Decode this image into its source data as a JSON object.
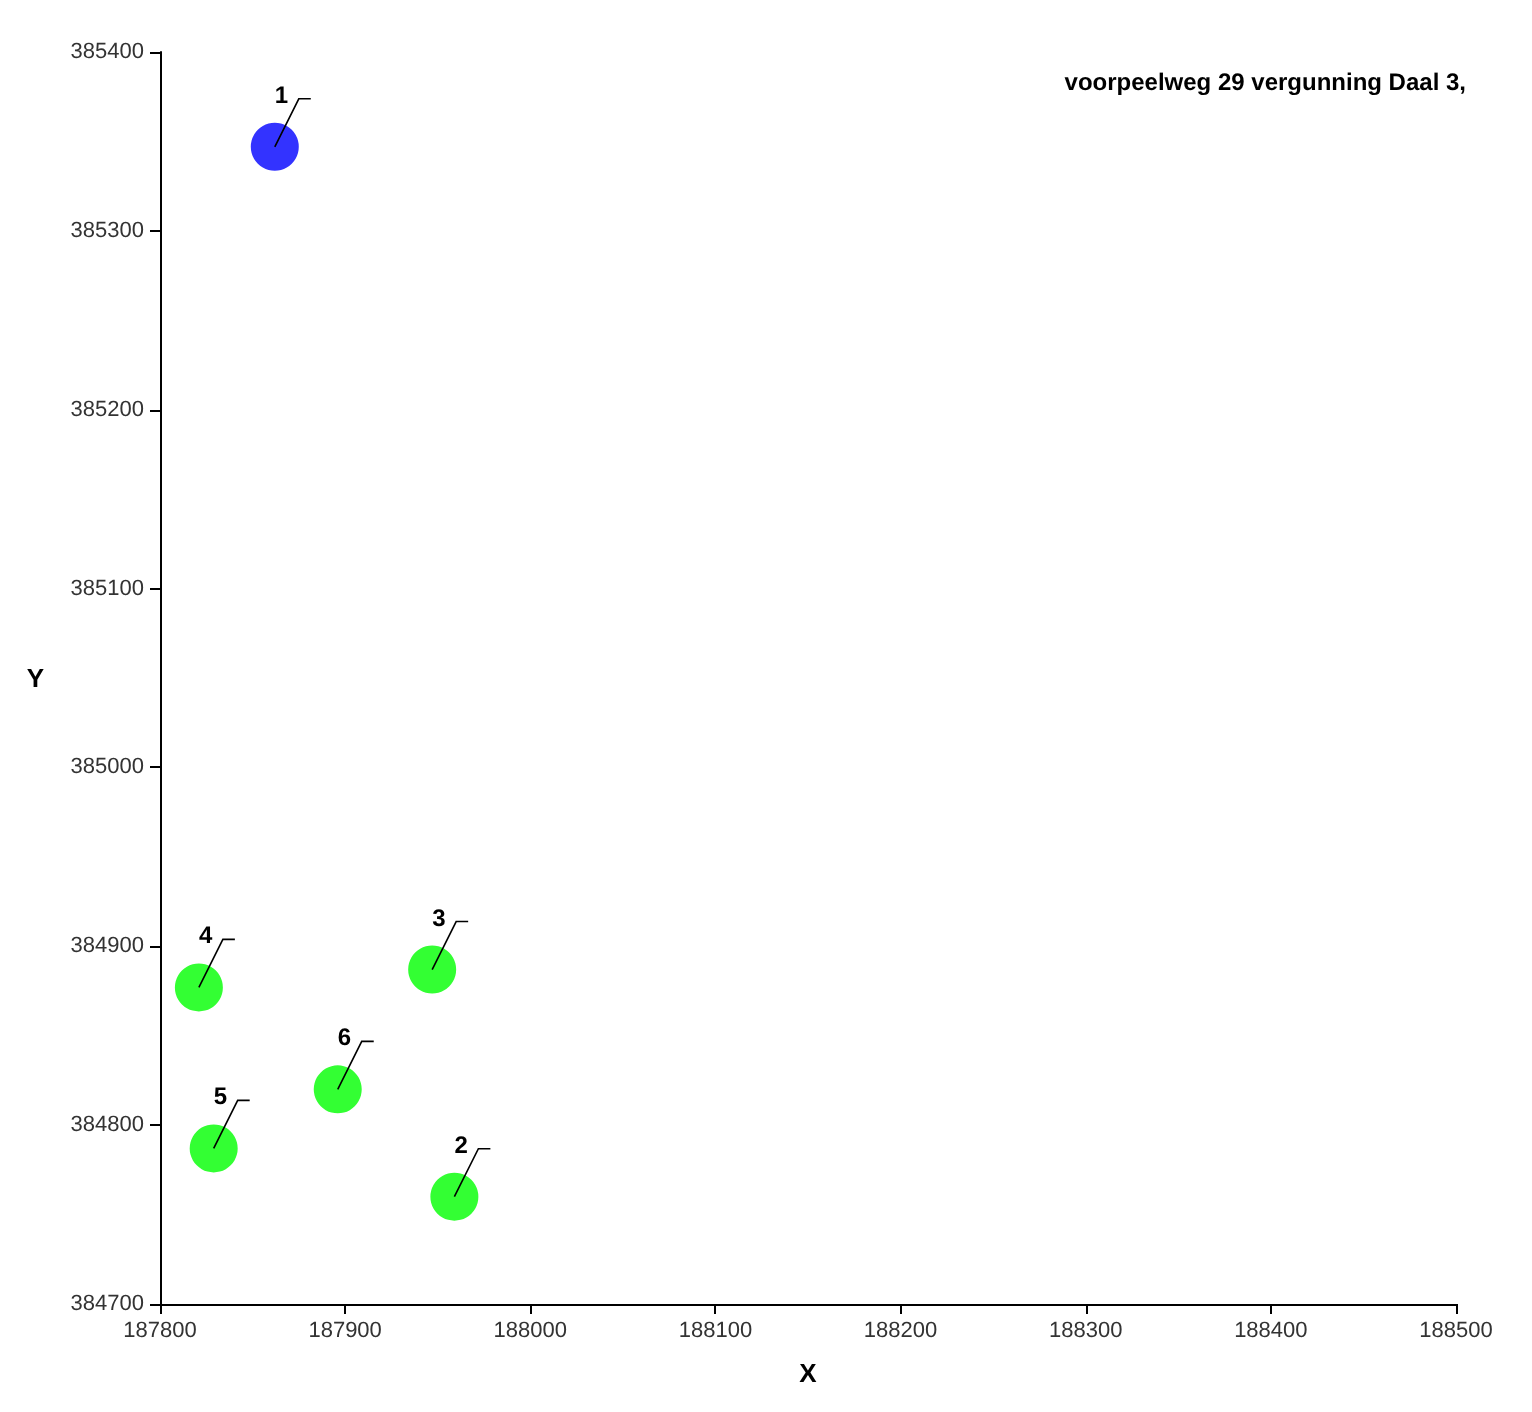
{
  "chart_data": {
    "type": "scatter",
    "title": "voorpeelweg 29 vergunning Daal 3,",
    "xlabel": "X",
    "ylabel": "Y",
    "x": [
      187862,
      187959,
      187947,
      187821,
      187829,
      187896
    ],
    "values": [
      385347,
      384760,
      384887,
      384877,
      384787,
      384820
    ],
    "colors": [
      "#0000ff",
      "#00ff00",
      "#00ff00",
      "#00ff00",
      "#00ff00",
      "#00ff00"
    ],
    "xlim": [
      187800,
      188500
    ],
    "xticks": [
      187800,
      187900,
      188000,
      188100,
      188200,
      188300,
      188400,
      188500
    ],
    "ylim": [
      384700,
      385400
    ],
    "yticks": [
      384700,
      384800,
      384900,
      385000,
      385100,
      385200,
      385300,
      385400
    ],
    "annotations": [
      {
        "text": "1",
        "x": 187862,
        "y": 385347
      },
      {
        "text": "2",
        "x": 187959,
        "y": 384760
      },
      {
        "text": "3",
        "x": 187947,
        "y": 384887
      },
      {
        "text": "4",
        "x": 187821,
        "y": 384877
      },
      {
        "text": "5",
        "x": 187829,
        "y": 384787
      },
      {
        "text": "6",
        "x": 187896,
        "y": 384820
      }
    ],
    "grid": false,
    "marker": "circle"
  }
}
